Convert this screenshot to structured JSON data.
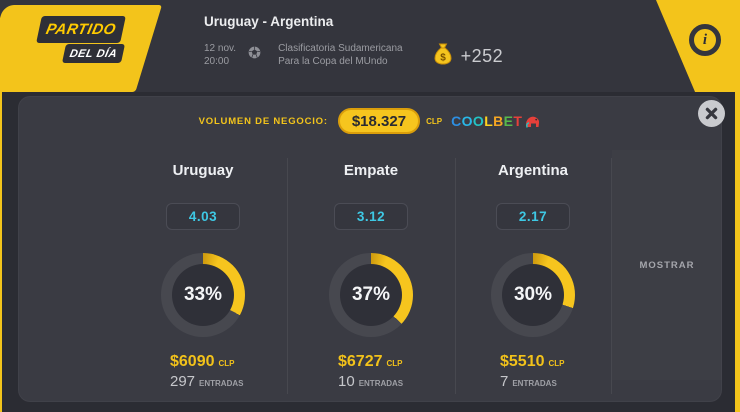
{
  "banner": {
    "title": "PARTIDO",
    "subtitle": "DEL DÍA"
  },
  "header": {
    "match_title": "Uruguay - Argentina",
    "date": "12 nov.",
    "time": "20:00",
    "competition_line1": "Clasificatoria Sudamericana",
    "competition_line2": "Para la Copa del MUndo",
    "boost": "+252",
    "info_label": "i"
  },
  "volume": {
    "label": "VOLUMEN DE NEGOCIO:",
    "amount": "$18.327",
    "currency": "CLP",
    "brand_letters": [
      {
        "ch": "C",
        "color": "#2D8FE2"
      },
      {
        "ch": "O",
        "color": "#29B8E8"
      },
      {
        "ch": "O",
        "color": "#23C4C4"
      },
      {
        "ch": "L",
        "color": "#FFD21E"
      },
      {
        "ch": "B",
        "color": "#F5A623"
      },
      {
        "ch": "E",
        "color": "#57B94C"
      },
      {
        "ch": "T",
        "color": "#E6403A"
      }
    ]
  },
  "outcomes": [
    {
      "name": "Uruguay",
      "odds": "4.03",
      "percent": 33,
      "percent_label": "33%",
      "amount": "$6090",
      "currency": "CLP",
      "entries": "297",
      "entries_label": "ENTRADAS"
    },
    {
      "name": "Empate",
      "odds": "3.12",
      "percent": 37,
      "percent_label": "37%",
      "amount": "$6727",
      "currency": "CLP",
      "entries": "10",
      "entries_label": "ENTRADAS"
    },
    {
      "name": "Argentina",
      "odds": "2.17",
      "percent": 30,
      "percent_label": "30%",
      "amount": "$5510",
      "currency": "CLP",
      "entries": "7",
      "entries_label": "ENTRADAS"
    }
  ],
  "actions": {
    "show_label": "MOSTRAR"
  },
  "colors": {
    "accent": "#F3C41B",
    "donut_fill": "#F6C51E",
    "donut_start": "#CE9A0E",
    "donut_track": "#47484F",
    "odds": "#3EC8E4"
  }
}
